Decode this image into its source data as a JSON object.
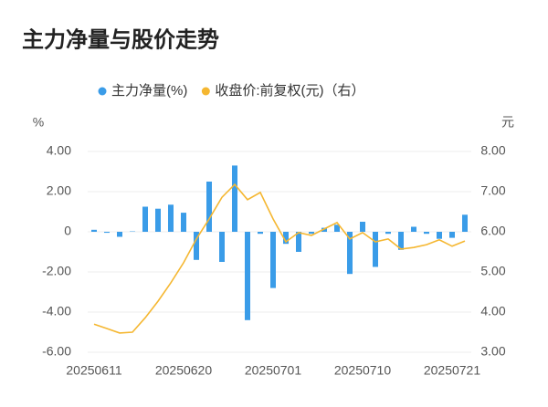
{
  "chart_data": {
    "type": "bar-line",
    "title": "主力净量与股价走势",
    "y_unit": "%",
    "y2_unit": "元",
    "categories": [
      "20250611",
      null,
      null,
      null,
      null,
      null,
      null,
      "20250620",
      null,
      null,
      null,
      null,
      null,
      null,
      "20250701",
      null,
      null,
      null,
      null,
      null,
      null,
      "20250710",
      null,
      null,
      null,
      null,
      null,
      null,
      "20250721",
      null
    ],
    "series": [
      {
        "name": "主力净量(%)",
        "type": "bar",
        "color": "#3a9ce8",
        "values": [
          0.1,
          -0.05,
          -0.25,
          0.02,
          1.25,
          1.15,
          1.35,
          0.95,
          -1.4,
          2.5,
          -1.5,
          3.3,
          -4.4,
          -0.1,
          -2.8,
          -0.6,
          -1.0,
          -0.1,
          0.2,
          0.35,
          -2.1,
          0.5,
          -1.75,
          -0.1,
          -0.9,
          0.25,
          -0.1,
          -0.35,
          -0.3,
          0.85
        ]
      },
      {
        "name": "收盘价:前复权(元)（右）",
        "type": "line",
        "axis": "y2",
        "color": "#f5b731",
        "values": [
          3.7,
          3.59,
          3.48,
          3.5,
          3.86,
          4.27,
          4.73,
          5.23,
          5.82,
          6.32,
          6.86,
          7.18,
          6.8,
          6.98,
          6.32,
          5.75,
          5.98,
          5.91,
          6.07,
          6.23,
          5.82,
          5.98,
          5.75,
          5.82,
          5.57,
          5.61,
          5.68,
          5.8,
          5.64,
          5.77
        ]
      }
    ],
    "ylim": [
      -6,
      4
    ],
    "yticks": [
      {
        "value": -6,
        "label": "-6.00"
      },
      {
        "value": -4,
        "label": "-4.00"
      },
      {
        "value": -2,
        "label": "-2.00"
      },
      0,
      {
        "value": 2,
        "label": "2.00"
      },
      {
        "value": 4,
        "label": "4.00"
      }
    ],
    "y2lim": [
      3,
      8
    ],
    "y2ticks": [
      {
        "value": 3,
        "label": "3.00"
      },
      {
        "value": 4,
        "label": "4.00"
      },
      {
        "value": 5,
        "label": "5.00"
      },
      {
        "value": 6,
        "label": "6.00"
      },
      {
        "value": 7,
        "label": "7.00"
      },
      {
        "value": 8,
        "label": "8.00"
      }
    ],
    "grid": true
  }
}
